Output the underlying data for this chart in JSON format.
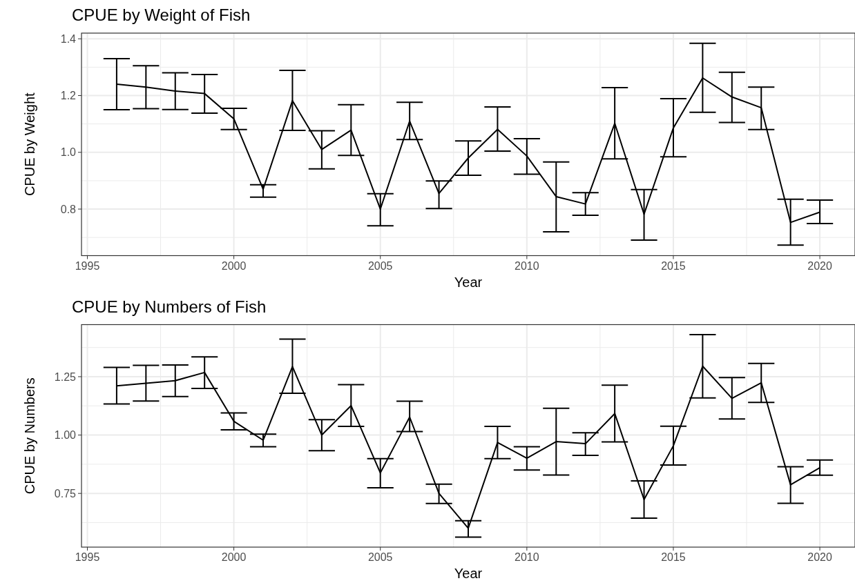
{
  "chart_data": [
    {
      "type": "line",
      "title": "CPUE by Weight of Fish",
      "xlabel": "Year",
      "ylabel": "CPUE by Weight",
      "x": [
        1996,
        1997,
        1998,
        1999,
        2000,
        2001,
        2002,
        2003,
        2004,
        2005,
        2006,
        2007,
        2008,
        2009,
        2010,
        2011,
        2012,
        2013,
        2014,
        2015,
        2016,
        2017,
        2018,
        2019,
        2020
      ],
      "series": [
        {
          "color": "#000000",
          "values": [
            1.24,
            1.23,
            1.216,
            1.207,
            1.118,
            0.87,
            1.182,
            1.01,
            1.078,
            0.8,
            1.11,
            0.855,
            0.98,
            1.081,
            0.987,
            0.844,
            0.818,
            1.102,
            0.782,
            1.086,
            1.262,
            1.195,
            1.157,
            0.753,
            0.789
          ],
          "errors": [
            [
              1.15,
              1.33
            ],
            [
              1.154,
              1.305
            ],
            [
              1.151,
              1.28
            ],
            [
              1.138,
              1.274
            ],
            [
              1.08,
              1.155
            ],
            [
              0.842,
              0.886
            ],
            [
              1.077,
              1.289
            ],
            [
              0.942,
              1.076
            ],
            [
              0.989,
              1.168
            ],
            [
              0.741,
              0.854
            ],
            [
              1.045,
              1.176
            ],
            [
              0.802,
              0.899
            ],
            [
              0.919,
              1.04
            ],
            [
              1.004,
              1.16
            ],
            [
              0.923,
              1.048
            ],
            [
              0.72,
              0.966
            ],
            [
              0.778,
              0.858
            ],
            [
              0.977,
              1.228
            ],
            [
              0.691,
              0.869
            ],
            [
              0.984,
              1.189
            ],
            [
              1.141,
              1.384
            ],
            [
              1.105,
              1.282
            ],
            [
              1.08,
              1.23
            ],
            [
              0.673,
              0.835
            ],
            [
              0.749,
              0.832
            ]
          ]
        }
      ],
      "xlim": [
        1994.8,
        2021.2
      ],
      "xticks": [
        1995,
        2000,
        2005,
        2010,
        2015,
        2020
      ],
      "ylim": [
        0.636,
        1.42
      ],
      "yticks": [
        {
          "value": 0.8,
          "label": "0.8"
        },
        {
          "value": 1,
          "label": "1.0"
        },
        {
          "value": 1.2,
          "label": "1.2"
        },
        {
          "value": 1.4,
          "label": "1.4"
        }
      ],
      "grid": true,
      "marker": "none",
      "line_style": "solid"
    },
    {
      "type": "line",
      "title": "CPUE by Numbers of Fish",
      "xlabel": "Year",
      "ylabel": "CPUE by Numbers",
      "x": [
        1996,
        1997,
        1998,
        1999,
        2000,
        2001,
        2002,
        2003,
        2004,
        2005,
        2006,
        2007,
        2008,
        2009,
        2010,
        2011,
        2012,
        2013,
        2014,
        2015,
        2016,
        2017,
        2018,
        2019,
        2020
      ],
      "series": [
        {
          "color": "#000000",
          "values": [
            1.211,
            1.222,
            1.233,
            1.268,
            1.059,
            0.978,
            1.293,
            1.0,
            1.126,
            0.838,
            1.077,
            0.75,
            0.601,
            0.968,
            0.901,
            0.972,
            0.963,
            1.092,
            0.724,
            0.954,
            1.295,
            1.157,
            1.224,
            0.787,
            0.86
          ],
          "errors": [
            [
              1.133,
              1.29
            ],
            [
              1.146,
              1.299
            ],
            [
              1.165,
              1.3
            ],
            [
              1.2,
              1.335
            ],
            [
              1.022,
              1.095
            ],
            [
              0.95,
              1.004
            ],
            [
              1.179,
              1.411
            ],
            [
              0.933,
              1.066
            ],
            [
              1.037,
              1.216
            ],
            [
              0.774,
              0.899
            ],
            [
              1.015,
              1.145
            ],
            [
              0.707,
              0.79
            ],
            [
              0.563,
              0.633
            ],
            [
              0.899,
              1.037
            ],
            [
              0.85,
              0.95
            ],
            [
              0.829,
              1.115
            ],
            [
              0.913,
              1.01
            ],
            [
              0.971,
              1.214
            ],
            [
              0.644,
              0.804
            ],
            [
              0.872,
              1.038
            ],
            [
              1.159,
              1.43
            ],
            [
              1.069,
              1.246
            ],
            [
              1.14,
              1.307
            ],
            [
              0.708,
              0.864
            ],
            [
              0.828,
              0.893
            ]
          ]
        }
      ],
      "xlim": [
        1994.8,
        2021.2
      ],
      "xticks": [
        1995,
        2000,
        2005,
        2010,
        2015,
        2020
      ],
      "ylim": [
        0.52,
        1.473
      ],
      "yticks": [
        {
          "value": 0.75,
          "label": "0.75"
        },
        {
          "value": 1,
          "label": "1.00"
        },
        {
          "value": 1.25,
          "label": "1.25"
        }
      ],
      "grid": true,
      "marker": "none",
      "line_style": "solid"
    }
  ]
}
